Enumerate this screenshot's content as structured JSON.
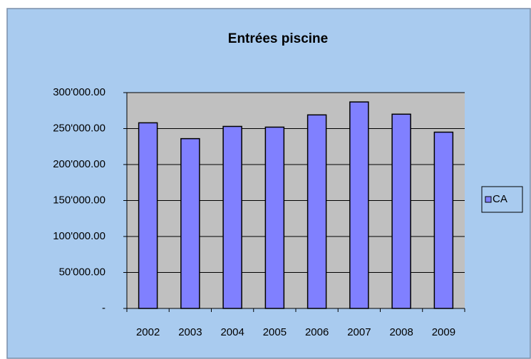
{
  "chart_data": {
    "type": "bar",
    "title": "Entrées piscine",
    "categories": [
      "2002",
      "2003",
      "2004",
      "2005",
      "2006",
      "2007",
      "2008",
      "2009"
    ],
    "series": [
      {
        "name": "CA",
        "color": "#8080ff",
        "values": [
          258000,
          236000,
          253000,
          252000,
          269000,
          287000,
          270000,
          245000
        ]
      }
    ],
    "ylim": [
      0,
      300000
    ],
    "yticks": [
      {
        "value": 0,
        "label": "-"
      },
      {
        "value": 50000,
        "label": "50'000.00"
      },
      {
        "value": 100000,
        "label": "100'000.00"
      },
      {
        "value": 150000,
        "label": "150'000.00"
      },
      {
        "value": 200000,
        "label": "200'000.00"
      },
      {
        "value": 250000,
        "label": "250'000.00"
      },
      {
        "value": 300000,
        "label": "300'000.00"
      }
    ],
    "grid": true,
    "legend": "right"
  }
}
